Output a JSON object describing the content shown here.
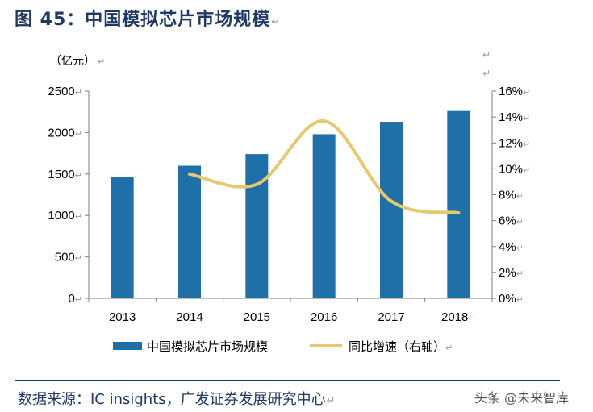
{
  "figure": {
    "title": "图 45：中国模拟芯片市场规模",
    "unit_left": "（亿元）",
    "source": "数据来源：IC insights，广发证券发展研究中心",
    "watermark": "头条 @未来智库",
    "para_mark": "↵"
  },
  "colors": {
    "bar": "#1f6fa8",
    "line": "#e6c96e",
    "title": "#1f3864",
    "axis": "#7f7f7f"
  },
  "chart_data": {
    "type": "bar",
    "categories": [
      "2013",
      "2014",
      "2015",
      "2016",
      "2017",
      "2018"
    ],
    "series": [
      {
        "name": "中国模拟芯片市场规模",
        "type": "bar",
        "axis": "left",
        "values": [
          1460,
          1600,
          1740,
          1980,
          2130,
          2260
        ]
      },
      {
        "name": "同比增速（右轴）",
        "type": "line",
        "axis": "right",
        "values": [
          null,
          0.096,
          0.088,
          0.137,
          0.075,
          0.066
        ]
      }
    ],
    "y_left": {
      "lim": [
        0,
        2500
      ],
      "ticks": [
        "0",
        "500",
        "1000",
        "1500",
        "2000",
        "2500"
      ]
    },
    "y_right": {
      "lim": [
        0,
        0.16
      ],
      "ticks": [
        "0%",
        "2%",
        "4%",
        "6%",
        "8%",
        "10%",
        "12%",
        "14%",
        "16%"
      ]
    },
    "grid": false,
    "legend": "bottom"
  }
}
